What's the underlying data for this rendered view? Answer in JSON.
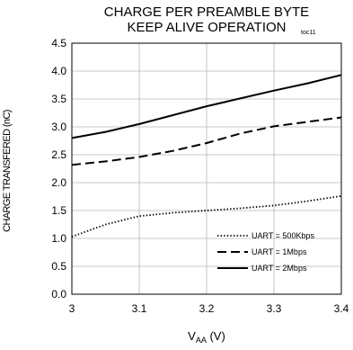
{
  "chart_data": {
    "type": "line",
    "title_line1": "CHARGE PER PREAMBLE BYTE",
    "title_line2": "KEEP ALIVE OPERATION",
    "tag": "toc11",
    "xlabel_main": "V",
    "xlabel_sub": "AA",
    "xlabel_unit": " (V)",
    "ylabel": "CHARGE TRANSFERED (nC)",
    "xlim": [
      3.0,
      3.4
    ],
    "ylim": [
      0.0,
      4.5
    ],
    "xticks": [
      "3",
      "3.1",
      "3.2",
      "3.3",
      "3.4"
    ],
    "yticks": [
      "0.0",
      "0.5",
      "1.0",
      "1.5",
      "2.0",
      "2.5",
      "3.0",
      "3.5",
      "4.0",
      "4.5"
    ],
    "grid": true,
    "legend_position": "bottom-right",
    "series": [
      {
        "name": "UART = 500Kbps",
        "style": "dotted",
        "x": [
          3.0,
          3.05,
          3.1,
          3.15,
          3.2,
          3.25,
          3.3,
          3.35,
          3.4
        ],
        "y": [
          1.03,
          1.25,
          1.4,
          1.46,
          1.5,
          1.54,
          1.59,
          1.67,
          1.76
        ]
      },
      {
        "name": "UART = 1Mbps",
        "style": "dashed",
        "x": [
          3.0,
          3.05,
          3.1,
          3.15,
          3.2,
          3.25,
          3.3,
          3.35,
          3.4
        ],
        "y": [
          2.32,
          2.38,
          2.46,
          2.57,
          2.71,
          2.88,
          3.01,
          3.09,
          3.17
        ]
      },
      {
        "name": "UART = 2Mbps",
        "style": "solid",
        "x": [
          3.0,
          3.05,
          3.1,
          3.15,
          3.2,
          3.25,
          3.3,
          3.35,
          3.4
        ],
        "y": [
          2.8,
          2.91,
          3.05,
          3.21,
          3.37,
          3.51,
          3.65,
          3.78,
          3.93
        ]
      }
    ]
  }
}
